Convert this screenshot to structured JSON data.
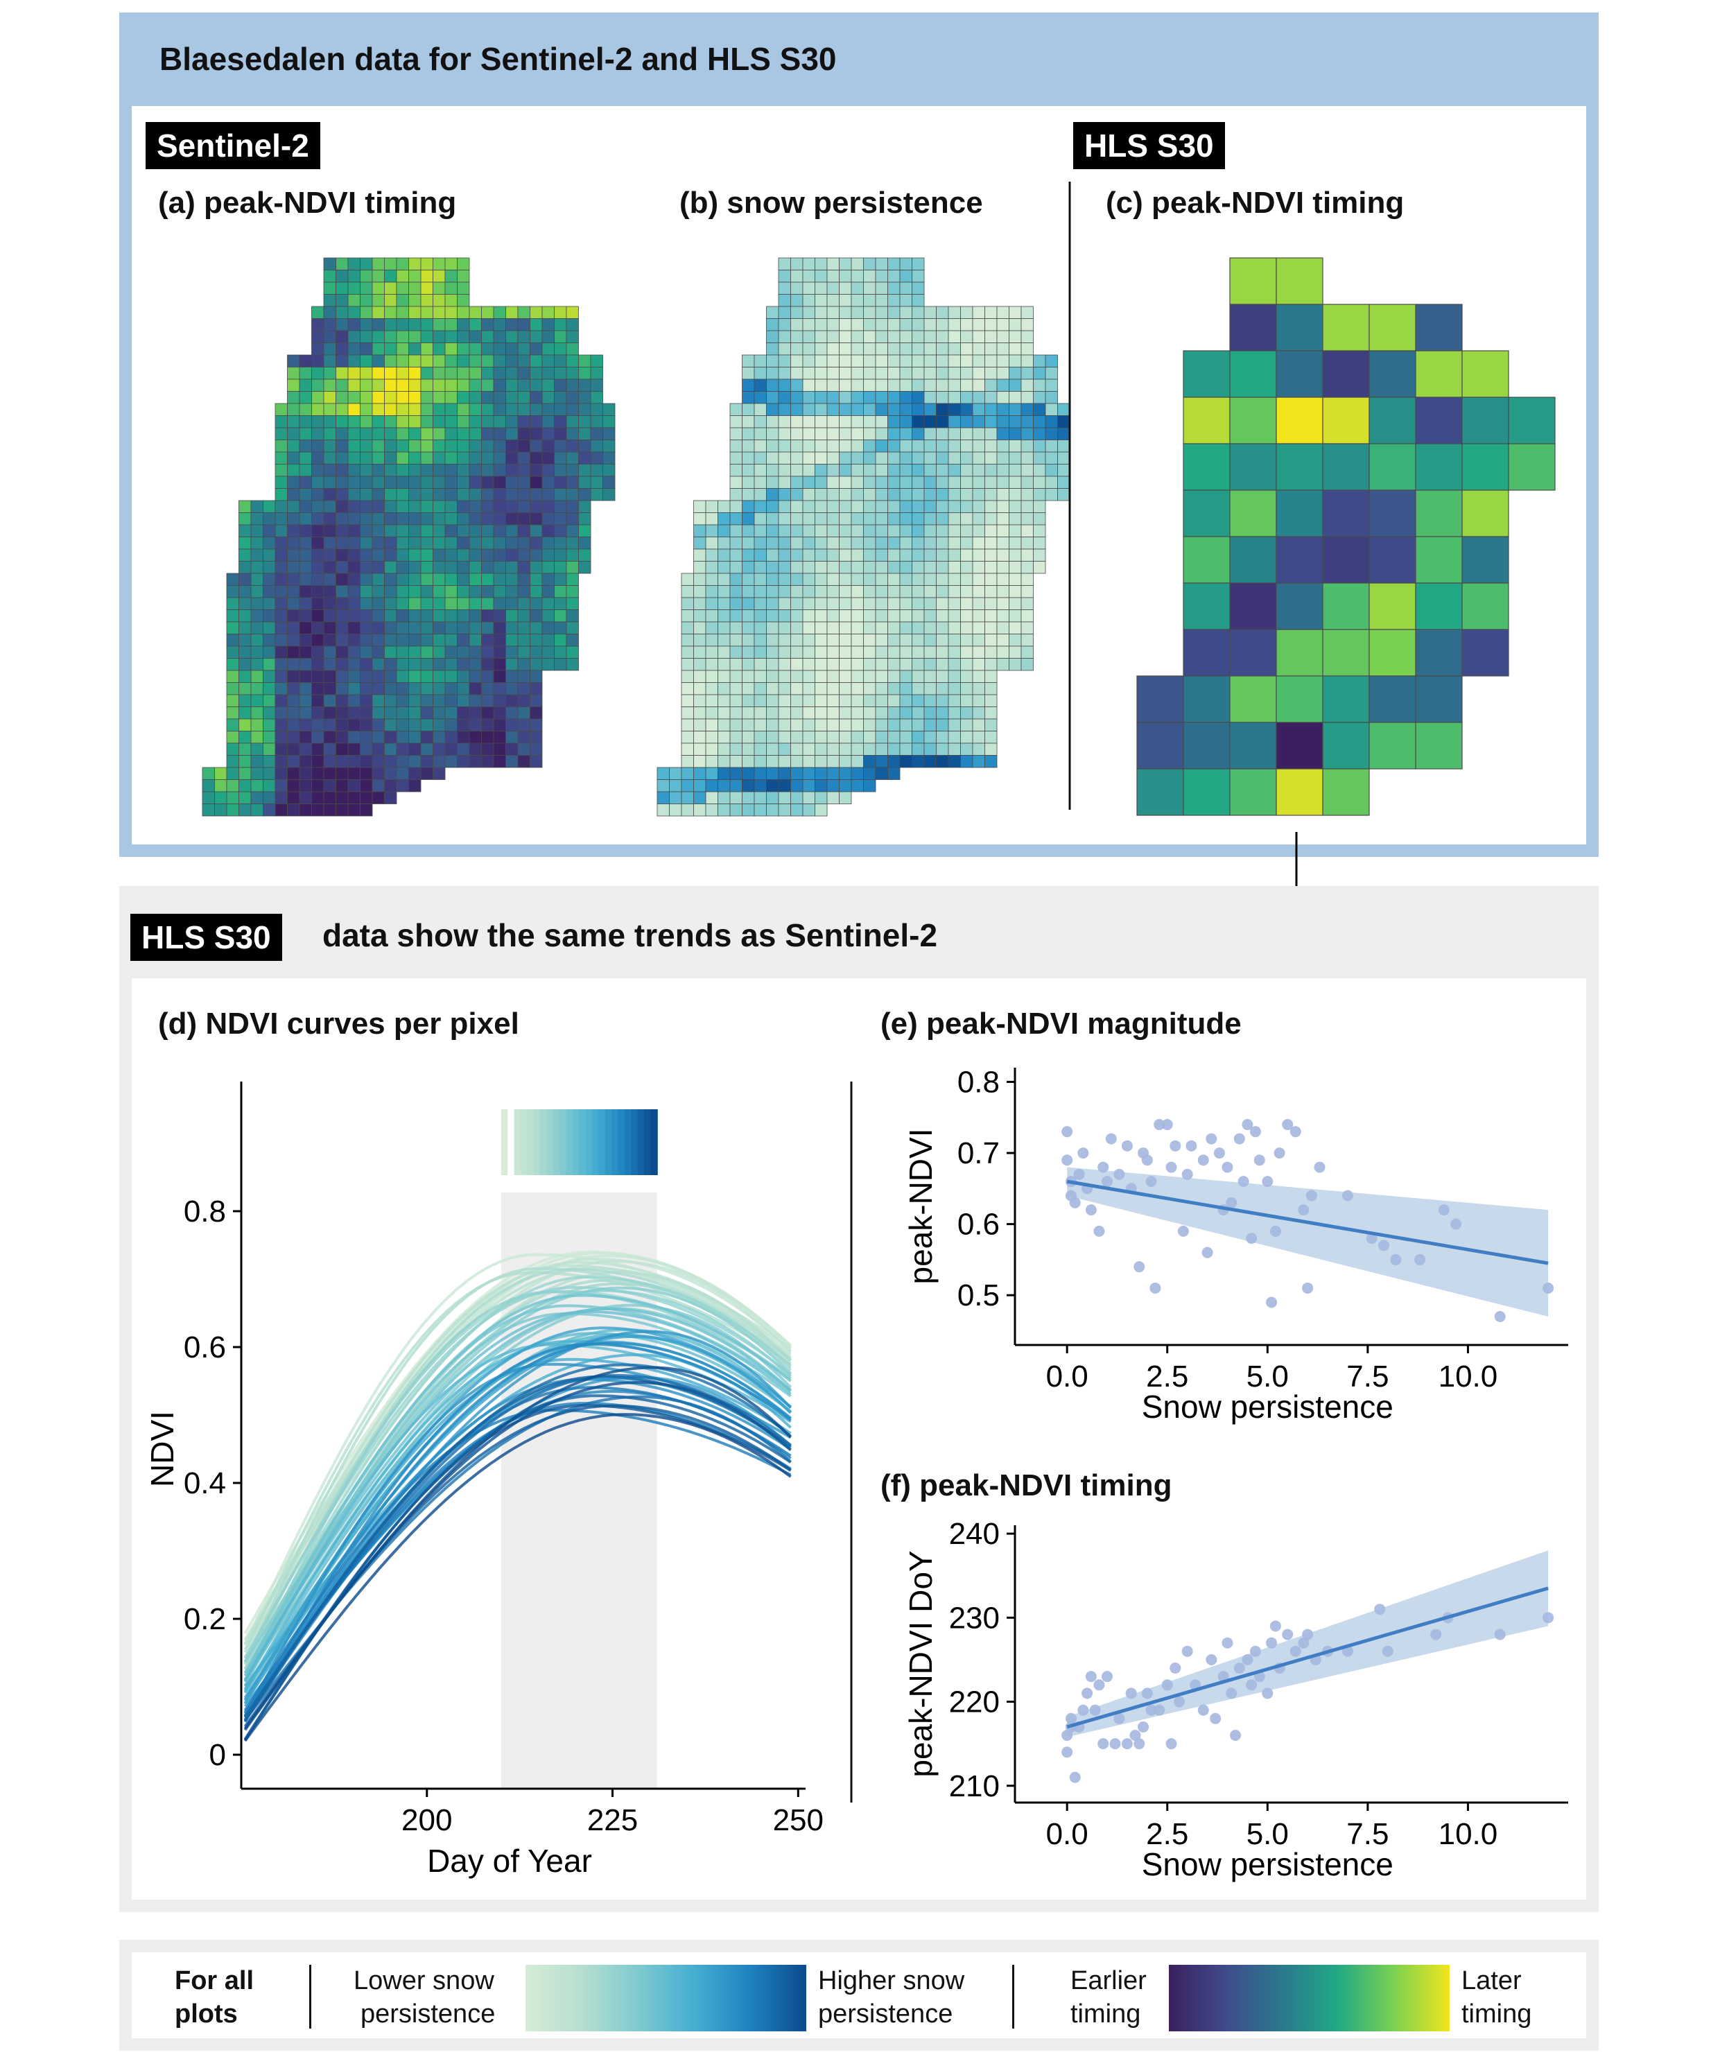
{
  "top_banner": {
    "title": "Blaesedalen data for Sentinel-2 and HLS S30"
  },
  "sentinel_badge": "Sentinel-2",
  "hls_badge": "HLS S30",
  "panels": {
    "a": "(a) peak-NDVI timing",
    "b": "(b) snow persistence",
    "c": "(c) peak-NDVI timing",
    "d": "(d) NDVI curves per pixel",
    "e": "(e) peak-NDVI magnitude",
    "f": "(f) peak-NDVI timing"
  },
  "bottom_banner": {
    "badge": "HLS S30",
    "title": "data show the same trends as Sentinel-2"
  },
  "legend": {
    "title_line1": "For all",
    "title_line2": "plots",
    "low_snow_line1": "Lower snow",
    "low_snow_line2": "persistence",
    "high_snow_line1": "Higher snow",
    "high_snow_line2": "persistence",
    "early_line1": "Earlier",
    "early_line2": "timing",
    "late_line1": "Later",
    "late_line2": "timing"
  },
  "colors": {
    "frame_top": "#a9c7e3",
    "frame_bottom": "#eeeeee",
    "snow_scale": [
      "#d6ecd6",
      "#b5dfd0",
      "#7fcad0",
      "#45aed1",
      "#1f82c0",
      "#0b4a8c"
    ],
    "timing_scale": [
      "#3b1f5f",
      "#3f4a8a",
      "#2a788e",
      "#22a884",
      "#7ad151",
      "#f2e51b"
    ],
    "trend_line": "#3f7dc4",
    "confidence_band": "#b9cfe6",
    "points": "#a4b7df"
  },
  "chart_data": [
    {
      "id": "d",
      "type": "line",
      "xlabel": "Day of Year",
      "ylabel": "NDVI",
      "xlim": [
        175,
        251
      ],
      "ylim": [
        -0.05,
        0.95
      ],
      "xticks": [
        200,
        225,
        250
      ],
      "yticks": [
        0,
        0.2,
        0.4,
        0.6,
        0.8
      ],
      "ytick_labels": [
        "0",
        "0.2",
        "0.4",
        "0.6",
        "0.8"
      ],
      "peak_window": [
        210,
        231
      ],
      "curve_count": 60,
      "curve_start_range": [
        0.03,
        0.18
      ],
      "curve_peak_range": [
        0.46,
        0.74
      ],
      "curve_peak_day_range": [
        212,
        232
      ],
      "curve_end_range": [
        0.36,
        0.58
      ]
    },
    {
      "id": "e",
      "type": "scatter",
      "xlabel": "Snow persistence",
      "ylabel": "peak-NDVI",
      "xlim": [
        -1.3,
        12.5
      ],
      "ylim": [
        0.43,
        0.82
      ],
      "xticks": [
        0,
        2.5,
        5,
        7.5,
        10
      ],
      "xtick_labels": [
        "0.0",
        "2.5",
        "5.0",
        "7.5",
        "10.0"
      ],
      "yticks": [
        0.5,
        0.6,
        0.7,
        0.8
      ],
      "ytick_labels": [
        "0.5",
        "0.6",
        "0.7",
        "0.8"
      ],
      "trend": {
        "x0": 0,
        "y0": 0.66,
        "x1": 12,
        "y1": 0.545
      },
      "band": {
        "lower": [
          0.64,
          0.47
        ],
        "upper": [
          0.68,
          0.62
        ]
      },
      "points": [
        [
          0.0,
          0.73
        ],
        [
          0.0,
          0.69
        ],
        [
          0.1,
          0.64
        ],
        [
          0.1,
          0.66
        ],
        [
          0.2,
          0.63
        ],
        [
          0.3,
          0.67
        ],
        [
          0.4,
          0.7
        ],
        [
          0.5,
          0.65
        ],
        [
          0.6,
          0.62
        ],
        [
          0.8,
          0.59
        ],
        [
          0.9,
          0.68
        ],
        [
          1.0,
          0.66
        ],
        [
          1.1,
          0.72
        ],
        [
          1.3,
          0.67
        ],
        [
          1.5,
          0.71
        ],
        [
          1.6,
          0.65
        ],
        [
          1.8,
          0.54
        ],
        [
          1.9,
          0.7
        ],
        [
          2.0,
          0.69
        ],
        [
          2.1,
          0.66
        ],
        [
          2.2,
          0.51
        ],
        [
          2.3,
          0.74
        ],
        [
          2.5,
          0.74
        ],
        [
          2.6,
          0.68
        ],
        [
          2.7,
          0.71
        ],
        [
          2.9,
          0.59
        ],
        [
          3.0,
          0.67
        ],
        [
          3.1,
          0.71
        ],
        [
          3.4,
          0.69
        ],
        [
          3.5,
          0.56
        ],
        [
          3.6,
          0.72
        ],
        [
          3.8,
          0.7
        ],
        [
          3.9,
          0.62
        ],
        [
          4.0,
          0.68
        ],
        [
          4.1,
          0.63
        ],
        [
          4.3,
          0.72
        ],
        [
          4.4,
          0.66
        ],
        [
          4.5,
          0.74
        ],
        [
          4.6,
          0.58
        ],
        [
          4.7,
          0.73
        ],
        [
          4.8,
          0.69
        ],
        [
          5.0,
          0.66
        ],
        [
          5.1,
          0.49
        ],
        [
          5.2,
          0.59
        ],
        [
          5.3,
          0.7
        ],
        [
          5.5,
          0.74
        ],
        [
          5.7,
          0.73
        ],
        [
          5.9,
          0.62
        ],
        [
          6.0,
          0.51
        ],
        [
          6.1,
          0.64
        ],
        [
          6.3,
          0.68
        ],
        [
          7.0,
          0.64
        ],
        [
          7.6,
          0.58
        ],
        [
          7.9,
          0.57
        ],
        [
          8.2,
          0.55
        ],
        [
          8.8,
          0.55
        ],
        [
          9.4,
          0.62
        ],
        [
          9.7,
          0.6
        ],
        [
          10.8,
          0.47
        ],
        [
          12.0,
          0.51
        ]
      ]
    },
    {
      "id": "f",
      "type": "scatter",
      "xlabel": "Snow persistence",
      "ylabel": "peak-NDVI DoY",
      "xlim": [
        -1.3,
        12.5
      ],
      "ylim": [
        208,
        241
      ],
      "xticks": [
        0,
        2.5,
        5,
        7.5,
        10
      ],
      "xtick_labels": [
        "0.0",
        "2.5",
        "5.0",
        "7.5",
        "10.0"
      ],
      "yticks": [
        210,
        220,
        230,
        240
      ],
      "ytick_labels": [
        "210",
        "220",
        "230",
        "240"
      ],
      "trend": {
        "x0": 0,
        "y0": 217,
        "x1": 12,
        "y1": 233.5
      },
      "band": {
        "lower": [
          215.8,
          229
        ],
        "upper": [
          218.2,
          238
        ]
      },
      "points": [
        [
          0.0,
          214
        ],
        [
          0.0,
          216
        ],
        [
          0.1,
          218
        ],
        [
          0.1,
          217
        ],
        [
          0.2,
          211
        ],
        [
          0.3,
          217
        ],
        [
          0.4,
          219
        ],
        [
          0.5,
          221
        ],
        [
          0.6,
          223
        ],
        [
          0.7,
          219
        ],
        [
          0.8,
          222
        ],
        [
          0.9,
          215
        ],
        [
          1.0,
          223
        ],
        [
          1.2,
          215
        ],
        [
          1.3,
          218
        ],
        [
          1.5,
          215
        ],
        [
          1.6,
          221
        ],
        [
          1.7,
          216
        ],
        [
          1.8,
          215
        ],
        [
          1.9,
          217
        ],
        [
          2.0,
          221
        ],
        [
          2.1,
          219
        ],
        [
          2.3,
          219
        ],
        [
          2.5,
          222
        ],
        [
          2.6,
          215
        ],
        [
          2.7,
          224
        ],
        [
          2.8,
          220
        ],
        [
          3.0,
          226
        ],
        [
          3.2,
          222
        ],
        [
          3.4,
          219
        ],
        [
          3.6,
          225
        ],
        [
          3.7,
          218
        ],
        [
          3.9,
          223
        ],
        [
          4.0,
          227
        ],
        [
          4.1,
          221
        ],
        [
          4.2,
          216
        ],
        [
          4.3,
          224
        ],
        [
          4.5,
          225
        ],
        [
          4.6,
          222
        ],
        [
          4.7,
          226
        ],
        [
          4.8,
          223
        ],
        [
          5.0,
          221
        ],
        [
          5.1,
          227
        ],
        [
          5.2,
          229
        ],
        [
          5.3,
          224
        ],
        [
          5.5,
          228
        ],
        [
          5.7,
          226
        ],
        [
          5.9,
          227
        ],
        [
          6.0,
          228
        ],
        [
          6.2,
          225
        ],
        [
          6.5,
          226
        ],
        [
          7.0,
          226
        ],
        [
          7.8,
          231
        ],
        [
          8.0,
          226
        ],
        [
          9.2,
          228
        ],
        [
          9.5,
          230
        ],
        [
          10.8,
          228
        ],
        [
          12.0,
          230
        ]
      ]
    }
  ]
}
